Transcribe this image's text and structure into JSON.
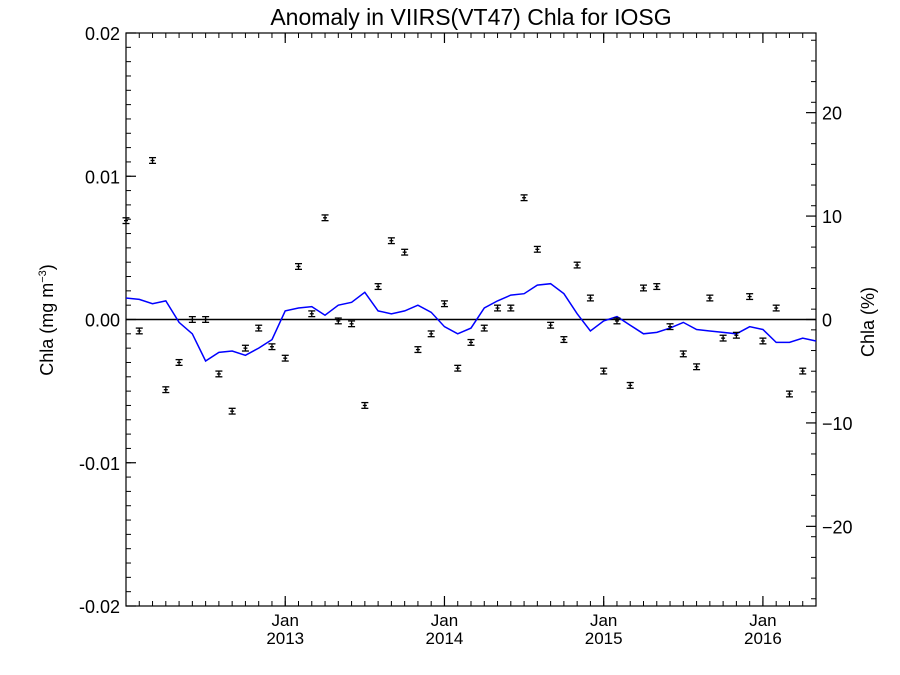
{
  "chart_data": {
    "type": "scatter",
    "title": "Anomaly in VIIRS(VT47) Chla for IOSG",
    "ylabel_left_main": "Chla (mg m",
    "ylabel_left_sup": "−3",
    "ylabel_left_close": ")",
    "ylabel_right": "Chla (%)",
    "ylim_left": [
      -0.02,
      0.02
    ],
    "yticks_left": [
      "0.02",
      "0.01",
      "0.00",
      "-0.01",
      "-0.02"
    ],
    "yticks_left_values": [
      0.02,
      0.01,
      0.0,
      -0.01,
      -0.02
    ],
    "ylim_right": [
      -27.7,
      27.7
    ],
    "yticks_right": [
      "20",
      "10",
      "0",
      "−10",
      "−20"
    ],
    "yticks_right_values": [
      20,
      10,
      0,
      -10,
      -20
    ],
    "xlim": [
      "2012-01-01",
      "2016-05-01"
    ],
    "xticks": [
      {
        "month": "Jan",
        "year": "2013",
        "date": "2013-01"
      },
      {
        "month": "Jan",
        "year": "2014",
        "date": "2014-01"
      },
      {
        "month": "Jan",
        "year": "2015",
        "date": "2015-01"
      },
      {
        "month": "Jan",
        "year": "2016",
        "date": "2016-01"
      }
    ],
    "zero_line": 0,
    "colors": {
      "points": "#000000",
      "smoothed": "#0000ff",
      "axes": "#000000"
    },
    "series": [
      {
        "kind": "points_with_error_bars",
        "x": [
          "2012-01",
          "2012-02",
          "2012-03",
          "2012-04",
          "2012-05",
          "2012-06",
          "2012-07",
          "2012-08",
          "2012-09",
          "2012-10",
          "2012-11",
          "2012-12",
          "2013-01",
          "2013-02",
          "2013-03",
          "2013-04",
          "2013-05",
          "2013-06",
          "2013-07",
          "2013-08",
          "2013-09",
          "2013-10",
          "2013-11",
          "2013-12",
          "2014-01",
          "2014-02",
          "2014-03",
          "2014-04",
          "2014-05",
          "2014-06",
          "2014-07",
          "2014-08",
          "2014-09",
          "2014-10",
          "2014-11",
          "2014-12",
          "2015-01",
          "2015-02",
          "2015-03",
          "2015-04",
          "2015-05",
          "2015-06",
          "2015-07",
          "2015-08",
          "2015-09",
          "2015-10",
          "2015-11",
          "2015-12",
          "2016-01",
          "2016-02",
          "2016-03",
          "2016-04"
        ],
        "values": [
          0.0069,
          -0.0008,
          0.0111,
          -0.0049,
          -0.003,
          0.0,
          0.0,
          -0.0038,
          -0.0064,
          -0.002,
          -0.0006,
          -0.0019,
          -0.0027,
          0.0037,
          0.0004,
          0.0071,
          -0.0001,
          -0.0003,
          -0.006,
          0.0023,
          0.0055,
          0.0047,
          -0.0021,
          -0.001,
          0.0011,
          -0.0034,
          -0.0016,
          -0.0006,
          0.0008,
          0.0008,
          0.0085,
          0.0049,
          -0.0004,
          -0.0014,
          0.0038,
          0.0015,
          -0.0036,
          -0.0001,
          -0.0046,
          0.0022,
          0.0023,
          -0.0005,
          -0.0024,
          -0.0033,
          0.0015,
          -0.0013,
          -0.0011,
          0.0016,
          -0.0015,
          0.0008,
          -0.0052,
          -0.0036
        ],
        "error": 0.0002
      },
      {
        "kind": "smoothed_line",
        "x": [
          "2012-01",
          "2012-02",
          "2012-03",
          "2012-04",
          "2012-05",
          "2012-06",
          "2012-07",
          "2012-08",
          "2012-09",
          "2012-10",
          "2012-11",
          "2012-12",
          "2013-01",
          "2013-02",
          "2013-03",
          "2013-04",
          "2013-05",
          "2013-06",
          "2013-07",
          "2013-08",
          "2013-09",
          "2013-10",
          "2013-11",
          "2013-12",
          "2014-01",
          "2014-02",
          "2014-03",
          "2014-04",
          "2014-05",
          "2014-06",
          "2014-07",
          "2014-08",
          "2014-09",
          "2014-10",
          "2014-11",
          "2014-12",
          "2015-01",
          "2015-02",
          "2015-03",
          "2015-04",
          "2015-05",
          "2015-06",
          "2015-07",
          "2015-08",
          "2015-09",
          "2015-10",
          "2015-11",
          "2015-12",
          "2016-01",
          "2016-02",
          "2016-03",
          "2016-04",
          "2016-05"
        ],
        "values": [
          0.0015,
          0.0014,
          0.0011,
          0.0013,
          -0.0002,
          -0.001,
          -0.0029,
          -0.0023,
          -0.0022,
          -0.0025,
          -0.002,
          -0.0014,
          0.0006,
          0.0008,
          0.0009,
          0.0003,
          0.001,
          0.0012,
          0.0019,
          0.0006,
          0.0004,
          0.0006,
          0.001,
          0.0005,
          -0.0005,
          -0.001,
          -0.0006,
          0.0008,
          0.0013,
          0.0017,
          0.0018,
          0.0024,
          0.0025,
          0.0018,
          0.0004,
          -0.0008,
          -0.0001,
          0.0002,
          -0.0004,
          -0.001,
          -0.0009,
          -0.0006,
          -0.0002,
          -0.0007,
          -0.0008,
          -0.0009,
          -0.001,
          -0.0005,
          -0.0007,
          -0.0016,
          -0.0016,
          -0.0013,
          -0.0015
        ]
      }
    ]
  }
}
